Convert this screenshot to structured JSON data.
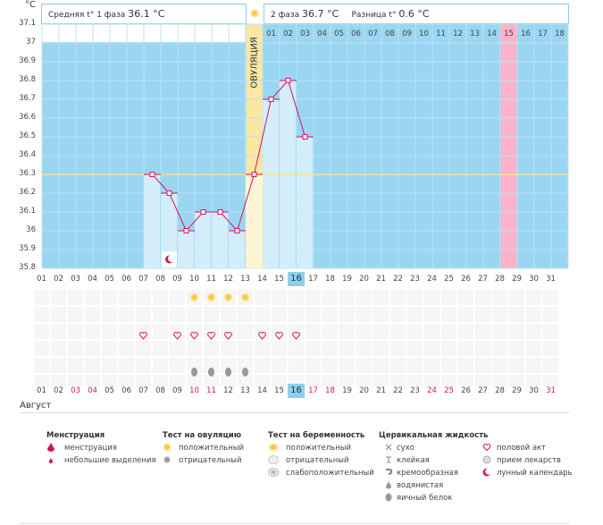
{
  "header": {
    "unit": "°C",
    "phase1_label": "Средняя t° 1 фаза",
    "phase1_value": "36.1 °C",
    "phase2_label": "2 фаза",
    "phase2_value": "36.7 °C",
    "diff_label": "Разница t°",
    "diff_value": "0.6 °C"
  },
  "ovulation_label": "ОВУЛЯЦИЯ",
  "month_label": "Август",
  "cycle_days_top": [
    "01",
    "02",
    "03",
    "04",
    "05",
    "06",
    "07",
    "08",
    "09",
    "10",
    "11",
    "12",
    "13",
    "14",
    "15",
    "16",
    "17",
    "18"
  ],
  "cycle_days_top_highlight": "15",
  "y_ticks": [
    "37.1",
    "37",
    "36.9",
    "36.8",
    "36.7",
    "36.6",
    "36.5",
    "36.4",
    "36.3",
    "36.2",
    "36.1",
    "36",
    "35.9",
    "35.8"
  ],
  "dates_row1": [
    "01",
    "02",
    "03",
    "04",
    "05",
    "06",
    "07",
    "08",
    "09",
    "10",
    "11",
    "12",
    "13",
    "14",
    "15",
    "16",
    "17",
    "18",
    "19",
    "20",
    "21",
    "22",
    "23",
    "24",
    "25",
    "26",
    "27",
    "28",
    "29",
    "30",
    "31"
  ],
  "dates_row2": [
    "01",
    "02",
    "03",
    "04",
    "05",
    "06",
    "07",
    "08",
    "09",
    "10",
    "11",
    "12",
    "13",
    "14",
    "15",
    "16",
    "17",
    "18",
    "19",
    "20",
    "21",
    "22",
    "23",
    "24",
    "25",
    "26",
    "27",
    "28",
    "29",
    "30",
    "31"
  ],
  "dates_row2_red": [
    "03",
    "04",
    "10",
    "11",
    "17",
    "18",
    "24",
    "25",
    "31"
  ],
  "today": "16",
  "chart_data": {
    "type": "bar",
    "categories": [
      "01",
      "02",
      "03",
      "04",
      "05",
      "06",
      "07",
      "08",
      "09",
      "10",
      "11",
      "12",
      "13",
      "14",
      "15",
      "16",
      "17",
      "18",
      "19",
      "20",
      "21",
      "22",
      "23",
      "24",
      "25",
      "26",
      "27",
      "28",
      "29",
      "30",
      "31"
    ],
    "values": [
      null,
      null,
      null,
      null,
      null,
      null,
      36.3,
      36.2,
      36.0,
      36.1,
      36.1,
      36.0,
      36.3,
      36.7,
      36.8,
      36.5,
      null,
      null,
      null,
      null,
      null,
      null,
      null,
      null,
      null,
      null,
      null,
      null,
      null,
      null,
      null
    ],
    "ylim": [
      35.8,
      37.1
    ],
    "coverline": 36.3,
    "ovulation_day": "13",
    "highlight_day": "28"
  },
  "markers": {
    "lunar": [
      "08"
    ],
    "ovulation_test_positive": [
      "10",
      "11",
      "12",
      "13"
    ],
    "intercourse": [
      "07",
      "09",
      "10",
      "11",
      "12",
      "14",
      "15",
      "16"
    ],
    "egg_white": [
      "10",
      "11",
      "12",
      "13"
    ]
  },
  "legend": {
    "menstruation": {
      "title": "Менструация",
      "items": [
        "менструация",
        "небольшие выделения"
      ]
    },
    "ovulation_test": {
      "title": "Тест на овуляцию",
      "items": [
        "положительный",
        "отрицательный"
      ]
    },
    "pregnancy_test": {
      "title": "Тест на беременность",
      "items": [
        "положительный",
        "отрицательный",
        "слабоположительный"
      ]
    },
    "cervical": {
      "title": "Цервикальная жидкость",
      "items": [
        "сухо",
        "клейкая",
        "кремообразная",
        "водянистая",
        "яичный белок"
      ]
    },
    "other": {
      "items": [
        "половой акт",
        "прием лекарств",
        "лунный календарь"
      ]
    }
  },
  "colors": {
    "chart_bg": "#9ad6f1",
    "bar_fill": "#d3edfb",
    "line": "#d4145a",
    "ovulation": "#fbe7a1",
    "highlight": "#f9b4c9",
    "coverline": "#f4e48a"
  }
}
